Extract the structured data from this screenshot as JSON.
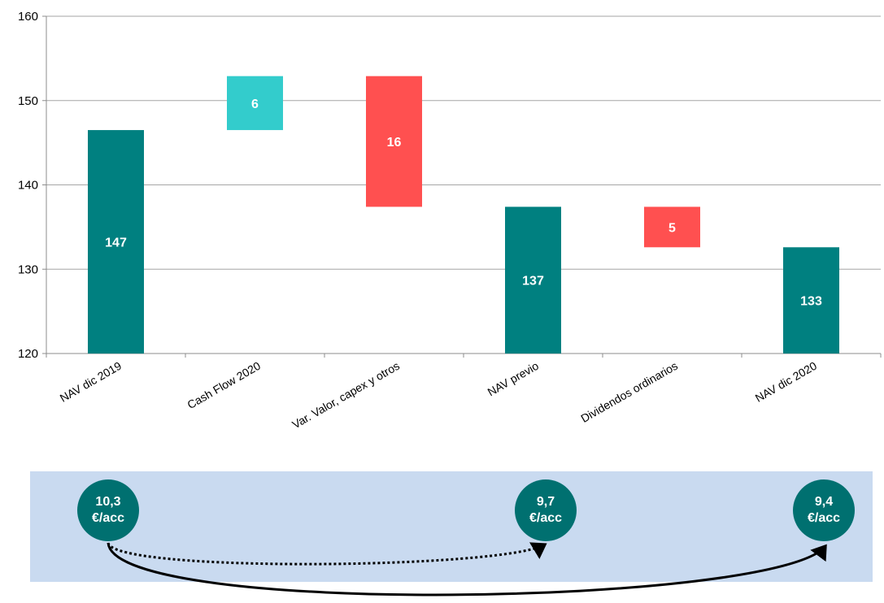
{
  "colors": {
    "total": "#008080",
    "increase": "#33cccc",
    "decrease": "#ff5050",
    "panel": "#c9daf0",
    "circle": "#007070"
  },
  "chart_data": {
    "type": "bar",
    "subtype": "waterfall",
    "ylim": [
      120,
      160
    ],
    "yticks": [
      120,
      130,
      140,
      150,
      160
    ],
    "categories": [
      "NAV dic 2019",
      "Cash Flow 2020",
      "Var. Valor, capex y otros",
      "NAV previo",
      "Dividendos ordinarios",
      "NAV dic 2020"
    ],
    "bars": [
      {
        "kind": "total",
        "bottom": 120,
        "top": 146.5,
        "label": "147"
      },
      {
        "kind": "increase",
        "bottom": 146.5,
        "top": 152.9,
        "label": "6"
      },
      {
        "kind": "decrease",
        "bottom": 137.4,
        "top": 152.9,
        "label": "16"
      },
      {
        "kind": "total",
        "bottom": 120,
        "top": 137.4,
        "label": "137"
      },
      {
        "kind": "decrease",
        "bottom": 132.6,
        "top": 137.4,
        "label": "5"
      },
      {
        "kind": "total",
        "bottom": 120,
        "top": 132.6,
        "label": "133"
      }
    ],
    "grid": true,
    "legend": "none"
  },
  "per_share": {
    "circles": [
      {
        "value": "10,3",
        "unit": "€/acc"
      },
      {
        "value": "9,7",
        "unit": "€/acc"
      },
      {
        "value": "9,4",
        "unit": "€/acc"
      }
    ]
  }
}
